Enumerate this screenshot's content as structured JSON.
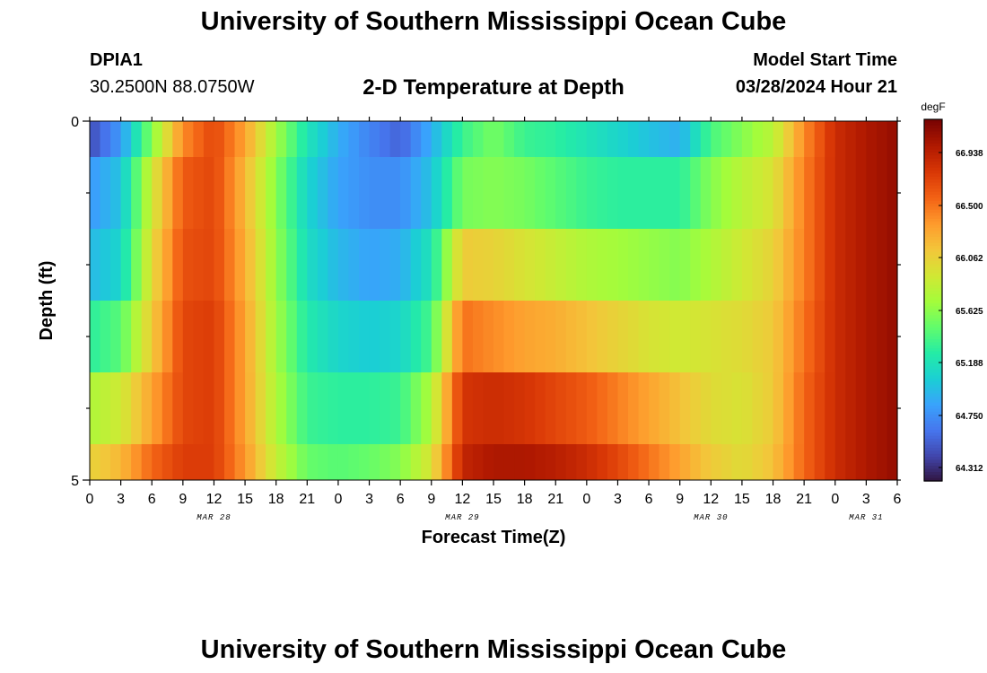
{
  "page": {
    "top_title": "University of Southern Mississippi Ocean Cube",
    "bottom_title": "University of Southern Mississippi Ocean Cube",
    "station_id": "DPIA1",
    "station_location": "30.2500N  88.0750W",
    "subtitle": "2-D Temperature at Depth",
    "model_start_label": "Model Start Time",
    "model_start_value": "03/28/2024 Hour 21"
  },
  "chart_data": {
    "type": "heatmap",
    "title": "2-D Temperature at Depth",
    "xlabel": "Forecast Time(Z)",
    "ylabel": "Depth (ft)",
    "y_ticks": [
      "0",
      "5"
    ],
    "x_tick_labels": [
      "0",
      "3",
      "6",
      "9",
      "12",
      "15",
      "18",
      "21",
      "0",
      "3",
      "6",
      "9",
      "12",
      "15",
      "18",
      "21",
      "0",
      "3",
      "6",
      "9",
      "12",
      "15",
      "18",
      "21",
      "0",
      "3",
      "6"
    ],
    "date_labels": [
      "MAR 28",
      "MAR 29",
      "MAR 30",
      "MAR 31"
    ],
    "x_range_hours": [
      0,
      78
    ],
    "y_range_ft": [
      0,
      5
    ],
    "colorbar": {
      "unit": "degF",
      "tick_labels": [
        "66.938",
        "66.500",
        "66.062",
        "65.625",
        "65.188",
        "64.750",
        "64.312"
      ],
      "range": [
        64.2,
        67.2
      ],
      "colors": [
        "#30123b",
        "#4145ab",
        "#4675ed",
        "#39a2fc",
        "#1bcfd4",
        "#24eca6",
        "#61fc6c",
        "#a4fc3b",
        "#d1e834",
        "#f3c63a",
        "#fe9b2d",
        "#f36315",
        "#d93806",
        "#b11901",
        "#7a0402"
      ]
    },
    "rows": [
      {
        "depth_band": "0-0.5",
        "hours": [
          0,
          3,
          6,
          9,
          12,
          15,
          18,
          21,
          24,
          27,
          30,
          33,
          36,
          39,
          42,
          45,
          48,
          51,
          54,
          57,
          60,
          63,
          66,
          69,
          72,
          75,
          78
        ],
        "values": [
          64.45,
          64.8,
          65.6,
          66.4,
          66.7,
          66.3,
          65.7,
          65.2,
          64.9,
          64.7,
          64.55,
          64.9,
          65.35,
          65.55,
          65.35,
          65.3,
          65.2,
          65.1,
          65.0,
          64.9,
          65.4,
          65.6,
          65.8,
          66.4,
          66.85,
          67.0,
          67.1
        ]
      },
      {
        "depth_band": "0.5-1.5",
        "hours": [
          0,
          3,
          6,
          9,
          12,
          15,
          18,
          21,
          24,
          27,
          30,
          33,
          36,
          39,
          42,
          45,
          48,
          51,
          54,
          57,
          60,
          63,
          66,
          69,
          72,
          75,
          78
        ],
        "values": [
          64.8,
          65.0,
          65.9,
          66.6,
          66.7,
          66.2,
          65.6,
          65.1,
          64.85,
          64.75,
          64.75,
          65.0,
          65.55,
          65.6,
          65.55,
          65.45,
          65.35,
          65.3,
          65.3,
          65.3,
          65.6,
          65.8,
          65.95,
          66.45,
          66.85,
          67.0,
          67.1
        ]
      },
      {
        "depth_band": "1.5-2.5",
        "hours": [
          0,
          3,
          6,
          9,
          12,
          15,
          18,
          21,
          24,
          27,
          30,
          33,
          36,
          39,
          42,
          45,
          48,
          51,
          54,
          57,
          60,
          63,
          66,
          69,
          72,
          75,
          78
        ],
        "values": [
          64.95,
          65.1,
          66.0,
          66.65,
          66.7,
          66.25,
          65.65,
          65.15,
          64.95,
          64.85,
          64.9,
          65.2,
          66.1,
          66.05,
          65.95,
          65.85,
          65.75,
          65.7,
          65.65,
          65.6,
          65.75,
          65.9,
          66.05,
          66.45,
          66.85,
          67.0,
          67.1
        ]
      },
      {
        "depth_band": "2.5-3.5",
        "hours": [
          0,
          3,
          6,
          9,
          12,
          15,
          18,
          21,
          24,
          27,
          30,
          33,
          36,
          39,
          42,
          45,
          48,
          51,
          54,
          57,
          60,
          63,
          66,
          69,
          72,
          75,
          78
        ],
        "values": [
          65.3,
          65.45,
          66.1,
          66.7,
          66.75,
          66.3,
          65.7,
          65.25,
          65.1,
          65.05,
          65.1,
          65.4,
          66.5,
          66.4,
          66.3,
          66.25,
          66.15,
          66.05,
          65.95,
          65.9,
          65.95,
          66.0,
          66.1,
          66.5,
          66.85,
          67.0,
          67.1
        ]
      },
      {
        "depth_band": "3.5-4.5",
        "hours": [
          0,
          3,
          6,
          9,
          12,
          15,
          18,
          21,
          24,
          27,
          30,
          33,
          36,
          39,
          42,
          45,
          48,
          51,
          54,
          57,
          60,
          63,
          66,
          69,
          72,
          75,
          78
        ],
        "values": [
          65.75,
          65.9,
          66.3,
          66.7,
          66.75,
          66.3,
          65.75,
          65.35,
          65.3,
          65.3,
          65.35,
          65.75,
          66.8,
          66.85,
          66.8,
          66.7,
          66.6,
          66.45,
          66.3,
          66.15,
          66.0,
          65.95,
          66.1,
          66.55,
          66.85,
          67.0,
          67.1
        ]
      },
      {
        "depth_band": "4.5-5",
        "hours": [
          0,
          3,
          6,
          9,
          12,
          15,
          18,
          21,
          24,
          27,
          30,
          33,
          36,
          39,
          42,
          45,
          48,
          51,
          54,
          57,
          60,
          63,
          66,
          69,
          72,
          75,
          78
        ],
        "values": [
          66.05,
          66.2,
          66.55,
          66.75,
          66.75,
          66.35,
          65.85,
          65.5,
          65.45,
          65.5,
          65.6,
          65.95,
          66.9,
          67.0,
          67.0,
          66.95,
          66.85,
          66.7,
          66.5,
          66.3,
          66.1,
          66.0,
          66.15,
          66.55,
          66.85,
          67.0,
          67.1
        ]
      }
    ]
  }
}
